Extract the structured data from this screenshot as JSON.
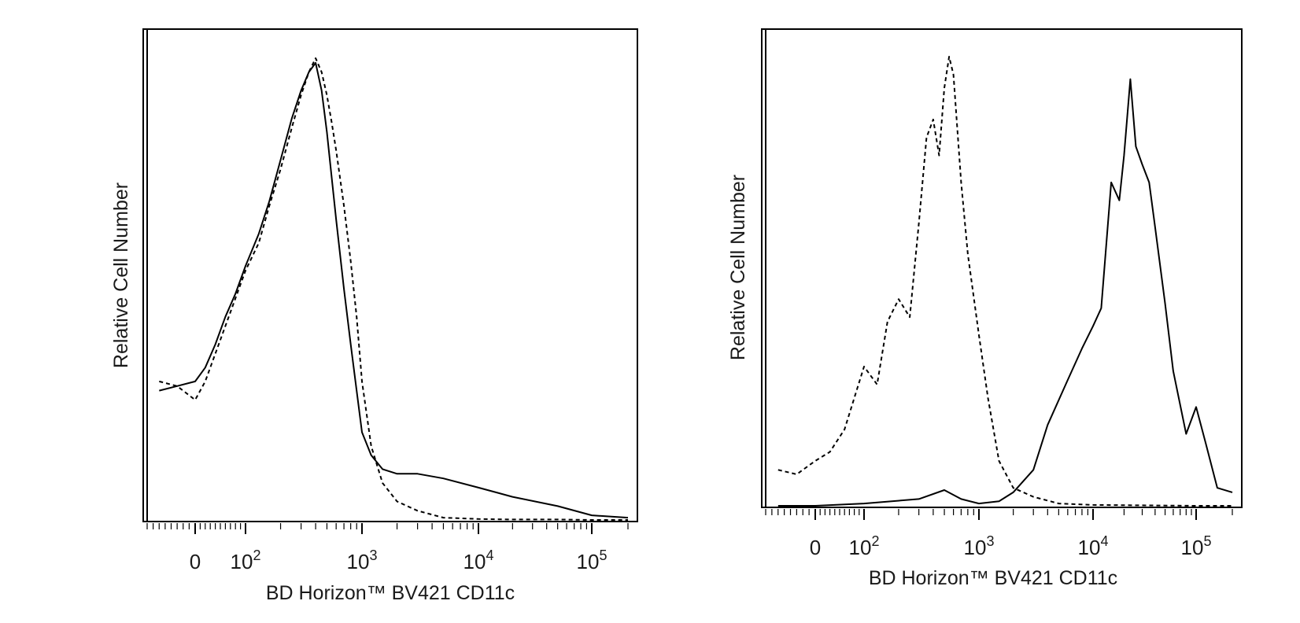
{
  "chart_data": [
    {
      "type": "line",
      "panel": "left",
      "xlabel": "BD Horizon™ BV421 CD11c",
      "ylabel": "Relative Cell Number",
      "x_scale": "biexponential (log with linear region near 0)",
      "xlim": [
        -80,
        200000
      ],
      "ylim": [
        0,
        1
      ],
      "grid": false,
      "legend": "none",
      "x_tick_labels": [
        {
          "value": 0,
          "base": "0",
          "exp": ""
        },
        {
          "value": 100,
          "base": "10",
          "exp": "2"
        },
        {
          "value": 1000,
          "base": "10",
          "exp": "3"
        },
        {
          "value": 10000,
          "base": "10",
          "exp": "4"
        },
        {
          "value": 100000,
          "base": "10",
          "exp": "5"
        }
      ],
      "series": [
        {
          "line_style": "solid",
          "x": [
            -60,
            -30,
            0,
            20,
            40,
            60,
            80,
            100,
            130,
            160,
            200,
            250,
            300,
            350,
            400,
            450,
            500,
            550,
            600,
            700,
            800,
            900,
            1000,
            1200,
            1500,
            2000,
            3000,
            5000,
            10000,
            20000,
            50000,
            100000,
            200000
          ],
          "y": [
            0.28,
            0.29,
            0.3,
            0.33,
            0.38,
            0.44,
            0.49,
            0.55,
            0.62,
            0.69,
            0.78,
            0.87,
            0.93,
            0.97,
            0.99,
            0.93,
            0.84,
            0.74,
            0.65,
            0.5,
            0.38,
            0.28,
            0.19,
            0.14,
            0.11,
            0.1,
            0.1,
            0.09,
            0.07,
            0.05,
            0.03,
            0.01,
            0.005
          ]
        },
        {
          "line_style": "dashed",
          "x": [
            -60,
            -30,
            0,
            20,
            40,
            60,
            80,
            100,
            130,
            160,
            200,
            250,
            300,
            350,
            400,
            450,
            500,
            550,
            600,
            700,
            800,
            900,
            1000,
            1200,
            1500,
            2000,
            3000,
            5000,
            10000,
            20000,
            50000,
            100000,
            200000
          ],
          "y": [
            0.3,
            0.29,
            0.26,
            0.3,
            0.36,
            0.42,
            0.48,
            0.54,
            0.6,
            0.68,
            0.76,
            0.85,
            0.92,
            0.97,
            1.0,
            0.97,
            0.92,
            0.86,
            0.8,
            0.68,
            0.56,
            0.44,
            0.3,
            0.16,
            0.08,
            0.04,
            0.02,
            0.005,
            0.002,
            0.001,
            0.001,
            0.0,
            0.0
          ]
        }
      ]
    },
    {
      "type": "line",
      "panel": "right",
      "xlabel": "BD Horizon™ BV421 CD11c",
      "ylabel": "Relative Cell Number",
      "x_scale": "biexponential (log with linear region near 0)",
      "xlim": [
        -80,
        200000
      ],
      "ylim": [
        0,
        1
      ],
      "grid": false,
      "legend": "none",
      "x_tick_labels": [
        {
          "value": 0,
          "base": "0",
          "exp": ""
        },
        {
          "value": 100,
          "base": "10",
          "exp": "2"
        },
        {
          "value": 1000,
          "base": "10",
          "exp": "3"
        },
        {
          "value": 10000,
          "base": "10",
          "exp": "4"
        },
        {
          "value": 100000,
          "base": "10",
          "exp": "5"
        }
      ],
      "series": [
        {
          "line_style": "dashed",
          "x": [
            -60,
            -30,
            0,
            30,
            60,
            100,
            130,
            160,
            200,
            250,
            300,
            350,
            400,
            450,
            500,
            550,
            600,
            700,
            800,
            1000,
            1200,
            1500,
            2000,
            3000,
            5000,
            10000,
            100000,
            200000
          ],
          "y": [
            0.08,
            0.07,
            0.1,
            0.12,
            0.17,
            0.31,
            0.27,
            0.41,
            0.46,
            0.42,
            0.63,
            0.82,
            0.86,
            0.78,
            0.93,
            1.0,
            0.96,
            0.72,
            0.56,
            0.38,
            0.24,
            0.1,
            0.04,
            0.02,
            0.005,
            0.002,
            0.0,
            0.0
          ]
        },
        {
          "line_style": "solid",
          "x": [
            -60,
            0,
            100,
            300,
            500,
            700,
            1000,
            1500,
            2000,
            3000,
            4000,
            6000,
            8000,
            10000,
            12000,
            15000,
            18000,
            20000,
            23000,
            26000,
            30000,
            35000,
            40000,
            50000,
            60000,
            80000,
            100000,
            120000,
            150000,
            200000
          ],
          "y": [
            0.0,
            0.0,
            0.005,
            0.015,
            0.035,
            0.015,
            0.005,
            0.01,
            0.03,
            0.08,
            0.18,
            0.28,
            0.35,
            0.4,
            0.44,
            0.72,
            0.68,
            0.78,
            0.95,
            0.8,
            0.76,
            0.72,
            0.62,
            0.45,
            0.3,
            0.16,
            0.22,
            0.14,
            0.04,
            0.03
          ]
        }
      ]
    }
  ]
}
